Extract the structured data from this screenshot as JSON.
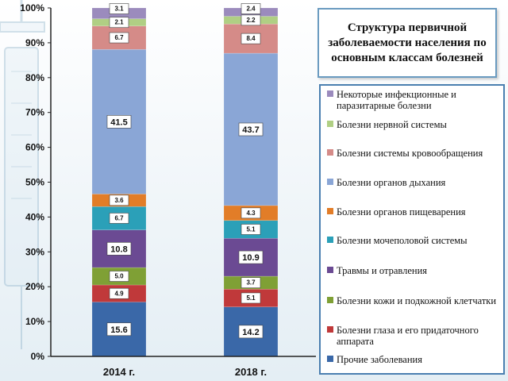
{
  "chart_data": {
    "type": "bar",
    "stacked": true,
    "percent": true,
    "categories": [
      "2014 г.",
      "2018 г."
    ],
    "yticks": [
      "0%",
      "10%",
      "20%",
      "30%",
      "40%",
      "50%",
      "60%",
      "70%",
      "80%",
      "90%",
      "100%"
    ],
    "ylim": [
      0,
      100
    ],
    "series": [
      {
        "name": "Прочие заболевания",
        "color": "#3a68a8",
        "values": [
          15.6,
          14.2
        ],
        "labels": [
          "15.6",
          "14.2"
        ]
      },
      {
        "name": "Болезни глаза и его придаточного аппарата",
        "color": "#c0393a",
        "values": [
          4.9,
          5.1
        ],
        "labels": [
          "4.9",
          "5.1"
        ]
      },
      {
        "name": "Болезни кожи и подкожной клетчатки",
        "color": "#7fa035",
        "values": [
          5.0,
          3.7
        ],
        "labels": [
          "5.0",
          "3.7"
        ]
      },
      {
        "name": "Травмы и отравления",
        "color": "#6b4a93",
        "values": [
          10.8,
          10.9
        ],
        "labels": [
          "10.8",
          "10.9"
        ]
      },
      {
        "name": "Болезни мочеполовой системы",
        "color": "#2ba0b8",
        "values": [
          6.7,
          5.1
        ],
        "labels": [
          "6.7",
          "5.1"
        ]
      },
      {
        "name": "Болезни органов пищеварения",
        "color": "#e27d28",
        "values": [
          3.6,
          4.3
        ],
        "labels": [
          "3.6",
          "4.3"
        ]
      },
      {
        "name": "Болезни органов дыхания",
        "color": "#8aa6d6",
        "values": [
          41.5,
          43.7
        ],
        "labels": [
          "41.5",
          "43.7"
        ]
      },
      {
        "name": "Болезни системы кровообращения",
        "color": "#d58b88",
        "values": [
          6.7,
          8.4
        ],
        "labels": [
          "6.7",
          "8.4"
        ]
      },
      {
        "name": "Болезни нервной системы",
        "color": "#b0cf84",
        "values": [
          2.1,
          2.2
        ],
        "labels": [
          "2.1",
          "2.2"
        ]
      },
      {
        "name": "Некоторые инфекционные и паразитарные болезни",
        "color": "#9b8bbd",
        "values": [
          3.1,
          2.4
        ],
        "labels": [
          "3.1",
          "2.4"
        ]
      }
    ],
    "legend_position": "right",
    "grid": false
  },
  "title": "Структура первичной заболеваемости населения по основным классам болезней",
  "legend": [
    {
      "label": "Некоторые инфекционные и паразитарные болезни",
      "color": "#9b8bbd"
    },
    {
      "label": "Болезни нервной системы",
      "color": "#b0cf84"
    },
    {
      "label": "Болезни системы кровообращения",
      "color": "#d58b88"
    },
    {
      "label": "Болезни органов дыхания",
      "color": "#8aa6d6"
    },
    {
      "label": "Болезни органов пищеварения",
      "color": "#e27d28"
    },
    {
      "label": "Болезни мочеполовой системы",
      "color": "#2ba0b8"
    },
    {
      "label": "Травмы и отравления",
      "color": "#6b4a93"
    },
    {
      "label": "Болезни кожи и подкожной клетчатки",
      "color": "#7fa035"
    },
    {
      "label": "Болезни глаза и его придаточного аппарата",
      "color": "#c0393a"
    },
    {
      "label": "Прочие заболевания",
      "color": "#3a68a8"
    }
  ]
}
